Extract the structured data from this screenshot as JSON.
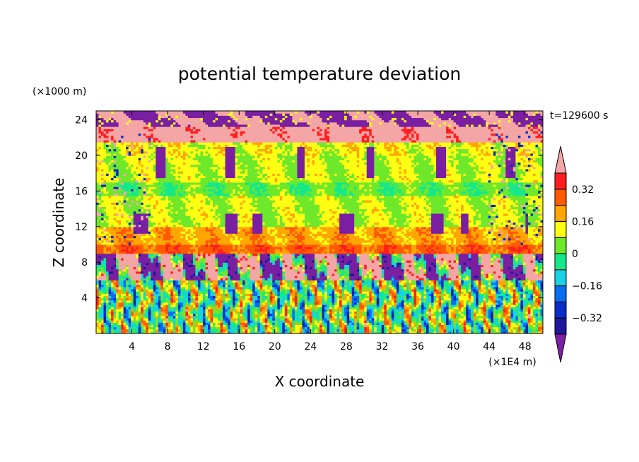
{
  "chart_data": {
    "type": "heatmap",
    "title": "potential temperature deviation",
    "xlabel": "X coordinate",
    "ylabel": "Z coordinate",
    "x_unit": "(×1E4 m)",
    "y_unit": "(×1000 m)",
    "time_label": "t=129600 s",
    "xlim": [
      0,
      50
    ],
    "ylim": [
      0,
      25
    ],
    "x_ticks": [
      4,
      8,
      12,
      16,
      20,
      24,
      28,
      32,
      36,
      40,
      44,
      48
    ],
    "y_ticks": [
      4,
      8,
      12,
      16,
      20,
      24
    ],
    "colorbar": {
      "levels": [
        -0.4,
        -0.32,
        -0.24,
        -0.16,
        -0.08,
        0,
        0.08,
        0.16,
        0.24,
        0.32,
        0.4
      ],
      "labeled_levels": [
        "0.32",
        "0.16",
        "0",
        "−0.16",
        "−0.32"
      ],
      "colors": [
        "#7b1fa2",
        "#21189c",
        "#0a2cc8",
        "#0b6ef0",
        "#18d2e6",
        "#15e88a",
        "#6ee82a",
        "#ffff14",
        "#ffa600",
        "#ff5a00",
        "#ff1e1e",
        "#f4a6a6"
      ],
      "extend": "both"
    },
    "approx_vertical_profile": [
      {
        "z_range": [
          23.0,
          25.0
        ],
        "dominant": "mixed -0.4 and 0.4+"
      },
      {
        "z_range": [
          21.6,
          23.0
        ],
        "dominant": "0.4+"
      },
      {
        "z_range": [
          20.0,
          21.6
        ],
        "dominant": "0.08 to 0.16"
      },
      {
        "z_range": [
          17.0,
          20.0
        ],
        "dominant": "0 to 0.16"
      },
      {
        "z_range": [
          15.6,
          16.4
        ],
        "dominant": "-0.08 to 0"
      },
      {
        "z_range": [
          12.0,
          15.0
        ],
        "dominant": "0 to 0.16"
      },
      {
        "z_range": [
          10.0,
          12.0
        ],
        "dominant": "0.16 to 0.24"
      },
      {
        "z_range": [
          9.0,
          10.0
        ],
        "dominant": "0.24 to 0.32"
      },
      {
        "z_range": [
          6.0,
          9.0
        ],
        "dominant": "-0.4 and 0.4+ mixed"
      },
      {
        "z_range": [
          0.0,
          6.0
        ],
        "dominant": "oscillating -0.16 to 0.32"
      }
    ]
  }
}
